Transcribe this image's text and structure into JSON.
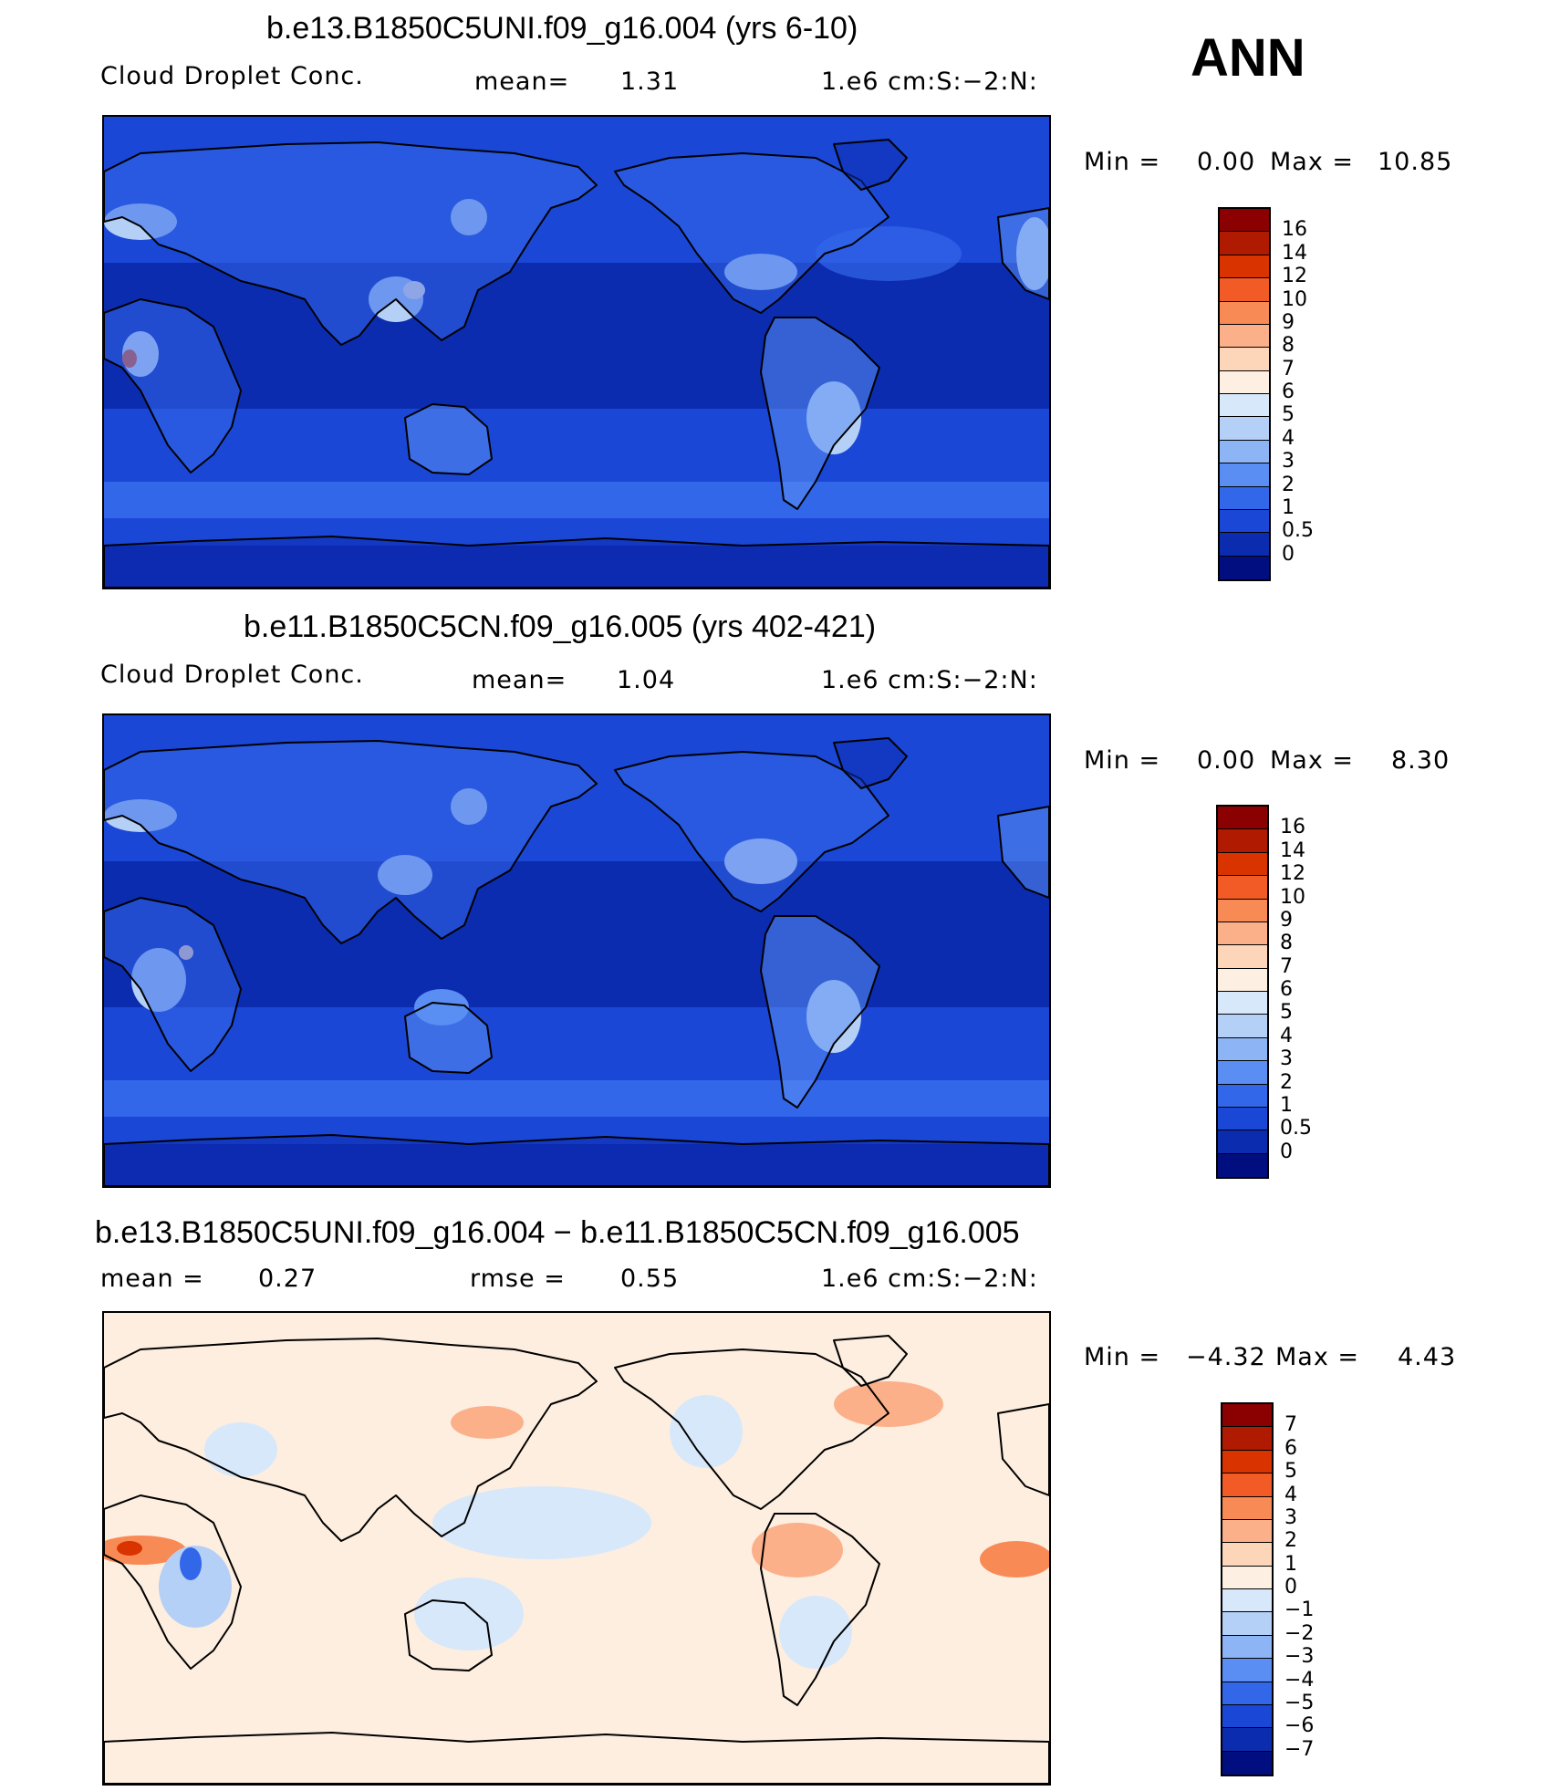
{
  "season": "ANN",
  "panels": [
    {
      "title": "b.e13.B1850C5UNI.f09_g16.004 (yrs 6-10)",
      "left_label": "Cloud Droplet Conc.",
      "mid_label": "mean=",
      "mid_value": "1.31",
      "right_label": "",
      "right_value": "",
      "units": "1.e6 cm:S:-2:N:",
      "min_label": "Min =",
      "min_value": "0.00",
      "max_label": "Max =",
      "max_value": "10.85",
      "colorbar_labels": [
        "16",
        "14",
        "12",
        "10",
        "9",
        "8",
        "7",
        "6",
        "5",
        "4",
        "3",
        "2",
        "1",
        "0.5",
        "0"
      ],
      "colorbar_colors": [
        "#8b0000",
        "#b01a00",
        "#d93300",
        "#f25a26",
        "#f88a55",
        "#fbb08a",
        "#fdd5b8",
        "#fdf0e2",
        "#d7e8fa",
        "#b5d0f7",
        "#8db4f5",
        "#5a8ef2",
        "#3367ea",
        "#1b47d6",
        "#0c2cb0",
        "#000e80"
      ]
    },
    {
      "title": "b.e11.B1850C5CN.f09_g16.005 (yrs 402-421)",
      "left_label": "Cloud Droplet Conc.",
      "mid_label": "mean=",
      "mid_value": "1.04",
      "right_label": "",
      "right_value": "",
      "units": "1.e6 cm:S:-2:N:",
      "min_label": "Min =",
      "min_value": "0.00",
      "max_label": "Max =",
      "max_value": "8.30",
      "colorbar_labels": [
        "16",
        "14",
        "12",
        "10",
        "9",
        "8",
        "7",
        "6",
        "5",
        "4",
        "3",
        "2",
        "1",
        "0.5",
        "0"
      ],
      "colorbar_colors": [
        "#8b0000",
        "#b01a00",
        "#d93300",
        "#f25a26",
        "#f88a55",
        "#fbb08a",
        "#fdd5b8",
        "#fdf0e2",
        "#d7e8fa",
        "#b5d0f7",
        "#8db4f5",
        "#5a8ef2",
        "#3367ea",
        "#1b47d6",
        "#0c2cb0",
        "#000e80"
      ]
    },
    {
      "title": "b.e13.B1850C5UNI.f09_g16.004 - b.e11.B1850C5CN.f09_g16.005",
      "left_label": "mean =",
      "mid_label": "",
      "mid_value": "0.27",
      "right_label": "rmse =",
      "right_value": "0.55",
      "units": "1.e6 cm:S:-2:N:",
      "min_label": "Min =",
      "min_value": "-4.32",
      "max_label": "Max =",
      "max_value": "4.43",
      "colorbar_labels": [
        "7",
        "6",
        "5",
        "4",
        "3",
        "2",
        "1",
        "0",
        "-1",
        "-2",
        "-3",
        "-4",
        "-5",
        "-6",
        "-7"
      ],
      "colorbar_colors": [
        "#8b0000",
        "#b01a00",
        "#d93300",
        "#f25a26",
        "#f88a55",
        "#fbb08a",
        "#fdd5b8",
        "#fdf0e2",
        "#d7e8fa",
        "#b5d0f7",
        "#8db4f5",
        "#5a8ef2",
        "#3367ea",
        "#1b47d6",
        "#0c2cb0",
        "#000e80"
      ]
    }
  ],
  "chart_data": [
    {
      "type": "heatmap",
      "title": "b.e13.B1850C5UNI.f09_g16.004 (yrs 6-10)",
      "variable": "Cloud Droplet Conc.",
      "units": "1.e6 cm:S:-2:N:",
      "mean": 1.31,
      "min": 0.0,
      "max": 10.85,
      "contour_levels": [
        0,
        0.5,
        1,
        2,
        3,
        4,
        5,
        6,
        7,
        8,
        9,
        10,
        12,
        14,
        16
      ]
    },
    {
      "type": "heatmap",
      "title": "b.e11.B1850C5CN.f09_g16.005 (yrs 402-421)",
      "variable": "Cloud Droplet Conc.",
      "units": "1.e6 cm:S:-2:N:",
      "mean": 1.04,
      "min": 0.0,
      "max": 8.3,
      "contour_levels": [
        0,
        0.5,
        1,
        2,
        3,
        4,
        5,
        6,
        7,
        8,
        9,
        10,
        12,
        14,
        16
      ]
    },
    {
      "type": "heatmap",
      "title": "b.e13.B1850C5UNI.f09_g16.004 - b.e11.B1850C5CN.f09_g16.005",
      "units": "1.e6 cm:S:-2:N:",
      "mean": 0.27,
      "rmse": 0.55,
      "min": -4.32,
      "max": 4.43,
      "contour_levels": [
        -7,
        -6,
        -5,
        -4,
        -3,
        -2,
        -1,
        0,
        1,
        2,
        3,
        4,
        5,
        6,
        7
      ]
    }
  ]
}
